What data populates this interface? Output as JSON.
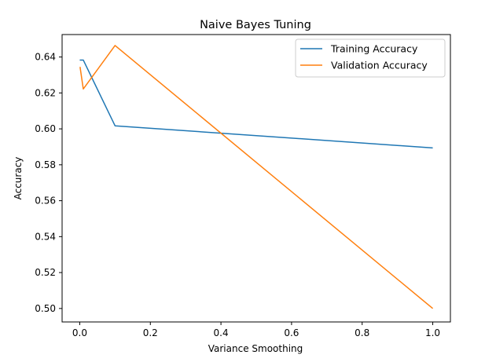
{
  "chart_data": {
    "type": "line",
    "title": "Naive Bayes Tuning",
    "xlabel": "Variance Smoothing",
    "ylabel": "Accuracy",
    "xlim": [
      -0.05,
      1.05
    ],
    "ylim": [
      0.4925,
      0.6525
    ],
    "xticks": [
      0.0,
      0.2,
      0.4,
      0.6,
      0.8,
      1.0
    ],
    "xtick_labels": [
      "0.0",
      "0.2",
      "0.4",
      "0.6",
      "0.8",
      "1.0"
    ],
    "yticks": [
      0.5,
      0.52,
      0.54,
      0.56,
      0.58,
      0.6,
      0.62,
      0.64
    ],
    "ytick_labels": [
      "0.50",
      "0.52",
      "0.54",
      "0.56",
      "0.58",
      "0.60",
      "0.62",
      "0.64"
    ],
    "grid": false,
    "legend_position": "top-right",
    "x": [
      1e-09,
      0.001,
      0.01,
      0.1,
      1.0
    ],
    "series": [
      {
        "name": "Training Accuracy",
        "color": "#1f77b4",
        "values": [
          0.6383,
          0.6383,
          0.6383,
          0.6017,
          0.5894
        ]
      },
      {
        "name": "Validation Accuracy",
        "color": "#ff7f0e",
        "values": [
          0.6343,
          0.6343,
          0.6222,
          0.6464,
          0.5
        ]
      }
    ]
  }
}
